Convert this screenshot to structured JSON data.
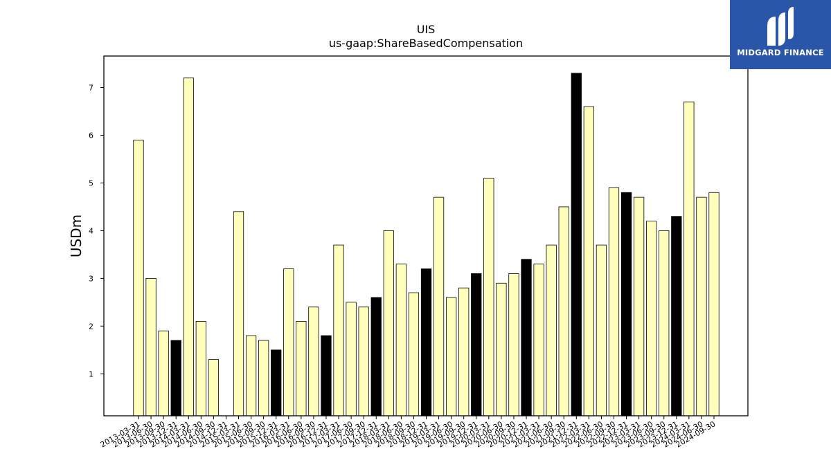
{
  "chart_data": {
    "type": "bar",
    "title": "UIS",
    "subtitle": "us-gaap:ShareBasedCompensation",
    "xlabel": "",
    "ylabel": "USDm",
    "ylim": [
      0.12,
      7.66
    ],
    "yticks": [
      1,
      2,
      3,
      4,
      5,
      6,
      7
    ],
    "grid": false,
    "colors": {
      "default": "#ffffbb",
      "highlight": "#000000",
      "edge": "#000000"
    },
    "categories": [
      "2013-03-31",
      "2013-06-30",
      "2013-09-30",
      "2013-12-31",
      "2014-03-31",
      "2014-06-30",
      "2014-09-30",
      "2014-12-31",
      "2015-03-31",
      "2015-06-30",
      "2015-09-30",
      "2015-12-31",
      "2016-03-31",
      "2016-06-30",
      "2016-09-30",
      "2016-12-31",
      "2017-03-31",
      "2017-06-30",
      "2017-09-30",
      "2017-12-31",
      "2018-03-31",
      "2018-06-30",
      "2018-09-30",
      "2018-12-31",
      "2019-03-31",
      "2019-06-30",
      "2019-09-30",
      "2019-12-31",
      "2020-03-31",
      "2020-06-30",
      "2020-09-30",
      "2020-12-31",
      "2021-03-31",
      "2021-06-30",
      "2021-09-30",
      "2021-12-31",
      "2022-03-31",
      "2022-06-30",
      "2022-09-30",
      "2022-12-31",
      "2023-03-31",
      "2023-06-30",
      "2023-09-30",
      "2023-12-31",
      "2024-03-31",
      "2024-06-30",
      "2024-09-30"
    ],
    "values": [
      5.9,
      3.0,
      1.9,
      1.7,
      7.2,
      2.1,
      1.3,
      null,
      4.4,
      1.8,
      1.7,
      1.5,
      3.2,
      2.1,
      2.4,
      1.8,
      3.7,
      2.5,
      2.4,
      2.6,
      4.0,
      3.3,
      2.7,
      3.2,
      4.7,
      2.6,
      2.8,
      3.1,
      5.1,
      2.9,
      3.1,
      3.4,
      3.3,
      3.7,
      4.5,
      7.3,
      6.6,
      3.7,
      4.9,
      4.8,
      4.7,
      4.2,
      4.0,
      4.3,
      6.7,
      4.7,
      4.8
    ],
    "highlight": [
      false,
      false,
      false,
      true,
      false,
      false,
      false,
      false,
      false,
      false,
      false,
      true,
      false,
      false,
      false,
      true,
      false,
      false,
      false,
      true,
      false,
      false,
      false,
      true,
      false,
      false,
      false,
      true,
      false,
      false,
      false,
      true,
      false,
      false,
      false,
      true,
      false,
      false,
      false,
      true,
      false,
      false,
      false,
      true,
      false,
      false,
      false
    ]
  },
  "logo": {
    "text": "MIDGARD FINANCE",
    "color": "#2a56a8"
  }
}
